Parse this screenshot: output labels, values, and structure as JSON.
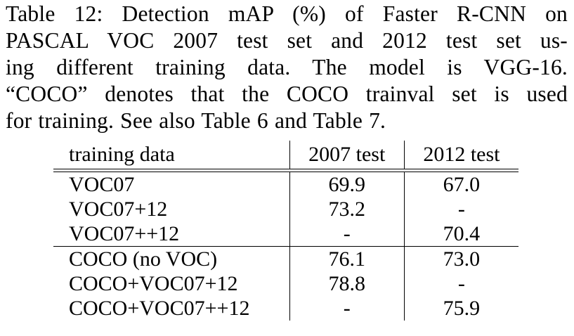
{
  "caption": {
    "lines": [
      "Table 12: Detection mAP (%) of Faster R-CNN on",
      "PASCAL VOC 2007 test set and 2012 test set us-",
      "ing different training data. The model is VGG-16.",
      "“COCO” denotes that the COCO trainval set is used",
      "for training. See also Table 6 and Table 7."
    ]
  },
  "table": {
    "headers": [
      "training data",
      "2007 test",
      "2012 test"
    ],
    "rows": [
      {
        "training": "VOC07",
        "test2007": "69.9",
        "test2012": "67.0"
      },
      {
        "training": "VOC07+12",
        "test2007": "73.2",
        "test2012": "-"
      },
      {
        "training": "VOC07++12",
        "test2007": "-",
        "test2012": "70.4"
      },
      {
        "training": "COCO (no VOC)",
        "test2007": "76.1",
        "test2012": "73.0"
      },
      {
        "training": "COCO+VOC07+12",
        "test2007": "78.8",
        "test2012": "-"
      },
      {
        "training": "COCO+VOC07++12",
        "test2007": "-",
        "test2012": "75.9"
      }
    ],
    "bold_cells": [
      "rows.4.test2007",
      "rows.5.test2012"
    ]
  }
}
